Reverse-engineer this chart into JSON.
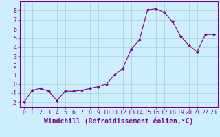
{
  "x": [
    0,
    1,
    2,
    3,
    4,
    5,
    6,
    7,
    8,
    9,
    10,
    11,
    12,
    13,
    14,
    15,
    16,
    17,
    18,
    19,
    20,
    21,
    22,
    23
  ],
  "y": [
    -2.0,
    -0.7,
    -0.5,
    -0.8,
    -1.8,
    -0.8,
    -0.8,
    -0.7,
    -0.5,
    -0.3,
    0.0,
    1.0,
    1.7,
    3.8,
    4.8,
    8.1,
    8.2,
    7.8,
    6.8,
    5.2,
    4.2,
    3.5,
    5.4,
    5.4
  ],
  "line_color": "#800080",
  "marker": "D",
  "marker_size": 2.0,
  "bg_color": "#cceeff",
  "grid_color": "#aad4dd",
  "axis_color": "#800080",
  "xlabel": "Windchill (Refroidissement éolien,°C)",
  "xlim": [
    -0.5,
    23.5
  ],
  "ylim": [
    -2.5,
    9.0
  ],
  "yticks": [
    -2,
    -1,
    0,
    1,
    2,
    3,
    4,
    5,
    6,
    7,
    8
  ],
  "xticks": [
    0,
    1,
    2,
    3,
    4,
    5,
    6,
    7,
    8,
    9,
    10,
    11,
    12,
    13,
    14,
    15,
    16,
    17,
    18,
    19,
    20,
    21,
    22,
    23
  ],
  "tick_fontsize": 6.0,
  "label_fontsize": 7.0
}
